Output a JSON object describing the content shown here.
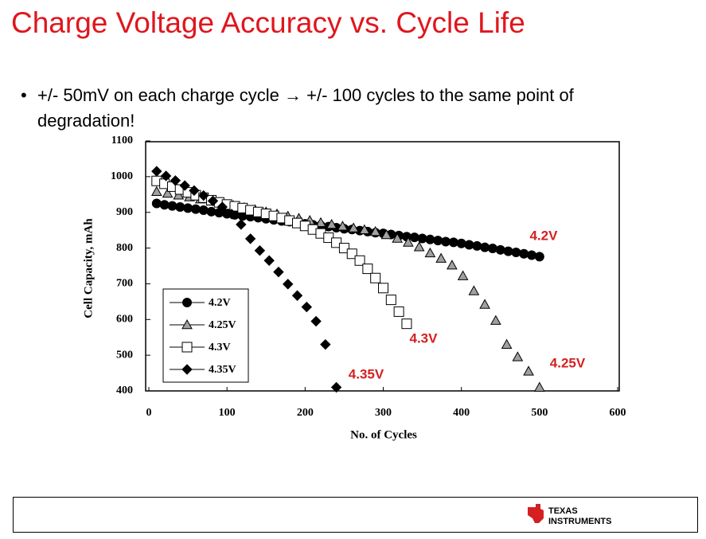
{
  "title": "Charge Voltage Accuracy vs. Cycle Life",
  "bullet": "+/- 50mV on each charge cycle → +/- 100 cycles to the same point of degradation!",
  "footer": {
    "logo_line1": "Texas",
    "logo_line2": "Instruments"
  },
  "chart_data": {
    "type": "scatter",
    "x_label": "No. of Cycles",
    "y_label": "Cell Capacity, mAh",
    "xlim": [
      0,
      600
    ],
    "xticks": [
      0,
      100,
      200,
      300,
      400,
      500,
      600
    ],
    "ylim": [
      400,
      1100
    ],
    "yticks": [
      400,
      500,
      600,
      700,
      800,
      900,
      1000,
      1100
    ],
    "legend": "lower-left",
    "series": [
      {
        "name": "4.2V",
        "marker": "circle",
        "color": "#000000",
        "x": [
          10,
          20,
          30,
          40,
          50,
          60,
          70,
          80,
          90,
          100,
          110,
          120,
          130,
          140,
          150,
          160,
          170,
          180,
          190,
          200,
          210,
          220,
          230,
          240,
          250,
          260,
          270,
          280,
          290,
          300,
          310,
          320,
          330,
          340,
          350,
          360,
          370,
          380,
          390,
          400,
          410,
          420,
          430,
          440,
          450,
          460,
          470,
          480,
          490,
          500
        ],
        "values": [
          925,
          921,
          918,
          915,
          912,
          909,
          906,
          902,
          899,
          896,
          893,
          890,
          888,
          885,
          882,
          879,
          876,
          874,
          871,
          868,
          865,
          863,
          860,
          857,
          854,
          852,
          849,
          846,
          843,
          841,
          838,
          835,
          832,
          830,
          827,
          824,
          821,
          818,
          816,
          813,
          809,
          806,
          802,
          799,
          795,
          791,
          788,
          784,
          780,
          776
        ]
      },
      {
        "name": "4.25V",
        "marker": "triangle",
        "color": "#a0a0a0",
        "x": [
          10,
          24,
          38,
          52,
          66,
          80,
          94,
          108,
          122,
          136,
          150,
          164,
          178,
          192,
          206,
          220,
          234,
          248,
          262,
          276,
          290,
          304,
          318,
          332,
          346,
          360,
          374,
          388,
          402,
          416,
          430,
          444,
          458,
          472,
          486,
          500
        ],
        "values": [
          958,
          953,
          948,
          943,
          937,
          931,
          925,
          919,
          913,
          907,
          901,
          895,
          889,
          883,
          877,
          871,
          866,
          861,
          856,
          851,
          846,
          837,
          827,
          816,
          803,
          786,
          771,
          752,
          722,
          680,
          642,
          597,
          530,
          495,
          455,
          410
        ]
      },
      {
        "name": "4.3V",
        "marker": "square",
        "color": "#ffffff",
        "x": [
          10,
          20,
          30,
          40,
          50,
          60,
          70,
          80,
          90,
          100,
          110,
          120,
          130,
          140,
          150,
          160,
          170,
          180,
          190,
          200,
          210,
          220,
          230,
          240,
          250,
          260,
          270,
          280,
          290,
          300,
          310,
          320,
          330
        ],
        "values": [
          988,
          980,
          972,
          964,
          956,
          948,
          941,
          934,
          928,
          922,
          917,
          912,
          906,
          901,
          896,
          890,
          884,
          877,
          870,
          862,
          852,
          841,
          829,
          815,
          800,
          784,
          765,
          742,
          716,
          688,
          655,
          622,
          588
        ]
      },
      {
        "name": "4.35V",
        "marker": "diamond",
        "color": "#000000",
        "x": [
          10,
          22,
          34,
          46,
          58,
          70,
          82,
          94,
          106,
          118,
          130,
          142,
          154,
          166,
          178,
          190,
          202,
          214,
          226,
          240
        ],
        "values": [
          1015,
          1002,
          989,
          975,
          961,
          947,
          932,
          915,
          895,
          866,
          826,
          793,
          765,
          733,
          699,
          667,
          635,
          595,
          530,
          410
        ]
      }
    ],
    "annotations": [
      "4.2V",
      "4.25V",
      "4.3V",
      "4.35V"
    ],
    "annotation_color": "#d42020"
  }
}
